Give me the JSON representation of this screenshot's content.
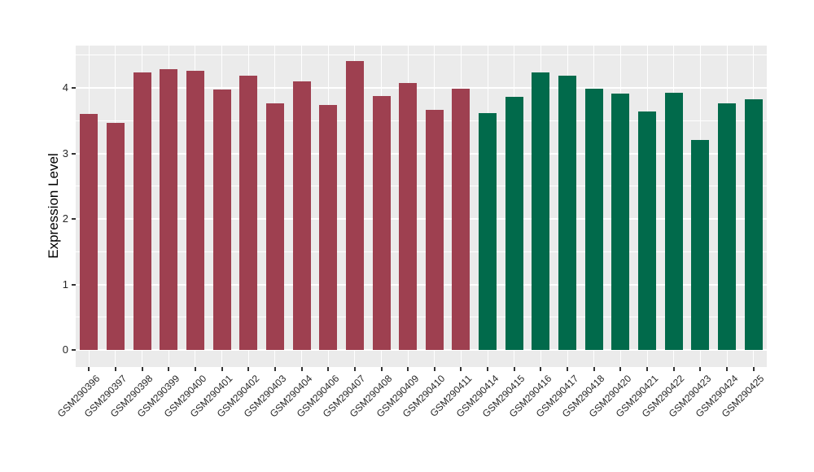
{
  "chart_data": {
    "type": "bar",
    "title": "",
    "xlabel": "",
    "ylabel": "Expression Level",
    "categories": [
      "GSM290396",
      "GSM290397",
      "GSM290398",
      "GSM290399",
      "GSM290400",
      "GSM290401",
      "GSM290402",
      "GSM290403",
      "GSM290404",
      "GSM290406",
      "GSM290407",
      "GSM290408",
      "GSM290409",
      "GSM290410",
      "GSM290411",
      "GSM290414",
      "GSM290415",
      "GSM290416",
      "GSM290417",
      "GSM290418",
      "GSM290420",
      "GSM290421",
      "GSM290422",
      "GSM290423",
      "GSM290424",
      "GSM290425"
    ],
    "values": [
      3.6,
      3.46,
      4.23,
      4.28,
      4.26,
      3.98,
      4.19,
      3.76,
      4.1,
      3.74,
      4.41,
      3.87,
      4.08,
      3.66,
      3.99,
      3.62,
      3.86,
      4.24,
      4.19,
      3.99,
      3.91,
      3.64,
      3.93,
      3.21,
      3.77,
      3.82
    ],
    "groups": [
      "group1",
      "group1",
      "group1",
      "group1",
      "group1",
      "group1",
      "group1",
      "group1",
      "group1",
      "group1",
      "group1",
      "group1",
      "group1",
      "group1",
      "group1",
      "group2",
      "group2",
      "group2",
      "group2",
      "group2",
      "group2",
      "group2",
      "group2",
      "group2",
      "group2",
      "group2"
    ],
    "group_colors": {
      "group1": "#9E4050",
      "group2": "#016A4B"
    },
    "yticks": [
      0,
      1,
      2,
      3,
      4
    ],
    "yticks_minor": [
      0.5,
      1.5,
      2.5,
      3.5,
      4.5
    ],
    "ylim": [
      -0.26,
      4.65
    ],
    "grid": true,
    "legend": "none",
    "panel_bg": "#EBEBEB",
    "grid_color": "#FFFFFF"
  }
}
